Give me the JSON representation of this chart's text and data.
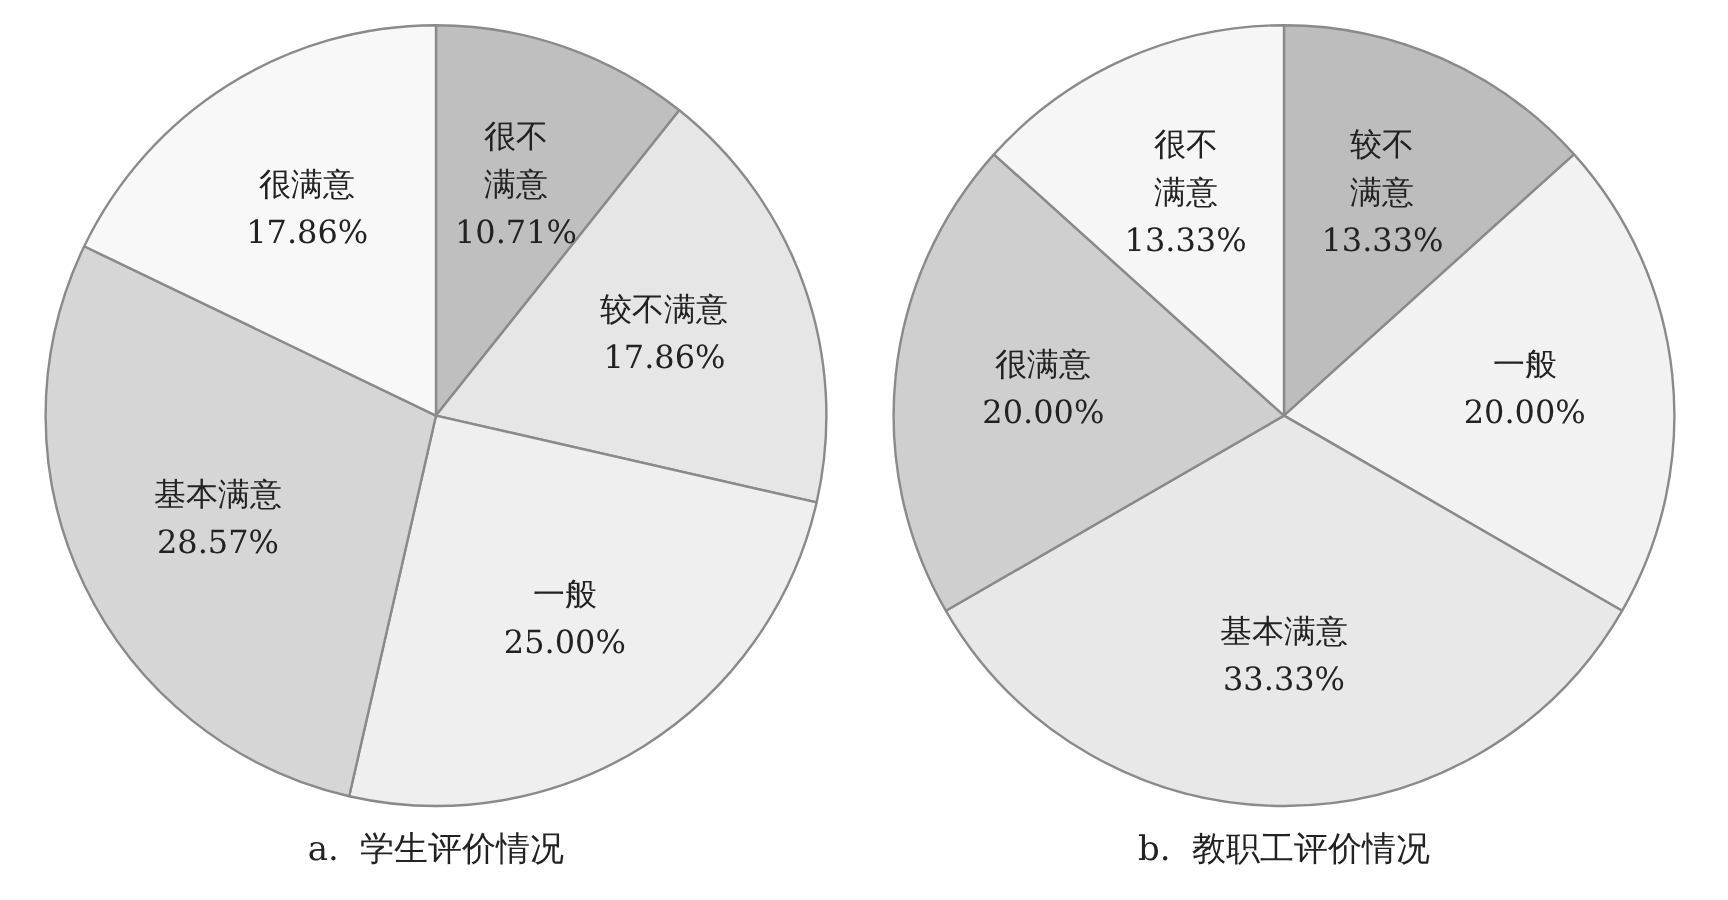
{
  "chart_data": [
    {
      "type": "pie",
      "title": "a.  学生评价情况",
      "categories": [
        "很不满意",
        "较不满意",
        "一般",
        "基本满意",
        "很满意"
      ],
      "values": [
        10.71,
        17.86,
        25.0,
        28.57,
        17.86
      ],
      "value_labels": [
        "10.71%",
        "17.86%",
        "25.00%",
        "28.57%",
        "17.86%"
      ],
      "colors": [
        "#bfbfbf",
        "#e6e6e6",
        "#efefef",
        "#d6d6d6",
        "#f8f8f8"
      ],
      "legend": false
    },
    {
      "type": "pie",
      "title": "b.  教职工评价情况",
      "categories": [
        "较不满意",
        "一般",
        "基本满意",
        "很满意",
        "很不满意"
      ],
      "values": [
        13.33,
        20.0,
        33.33,
        20.0,
        13.33
      ],
      "value_labels": [
        "13.33%",
        "20.00%",
        "33.33%",
        "20.00%",
        "13.33%"
      ],
      "colors": [
        "#bdbdbd",
        "#f2f2f2",
        "#e8e8e8",
        "#cfcfcf",
        "#f6f6f6"
      ],
      "legend": false
    }
  ]
}
